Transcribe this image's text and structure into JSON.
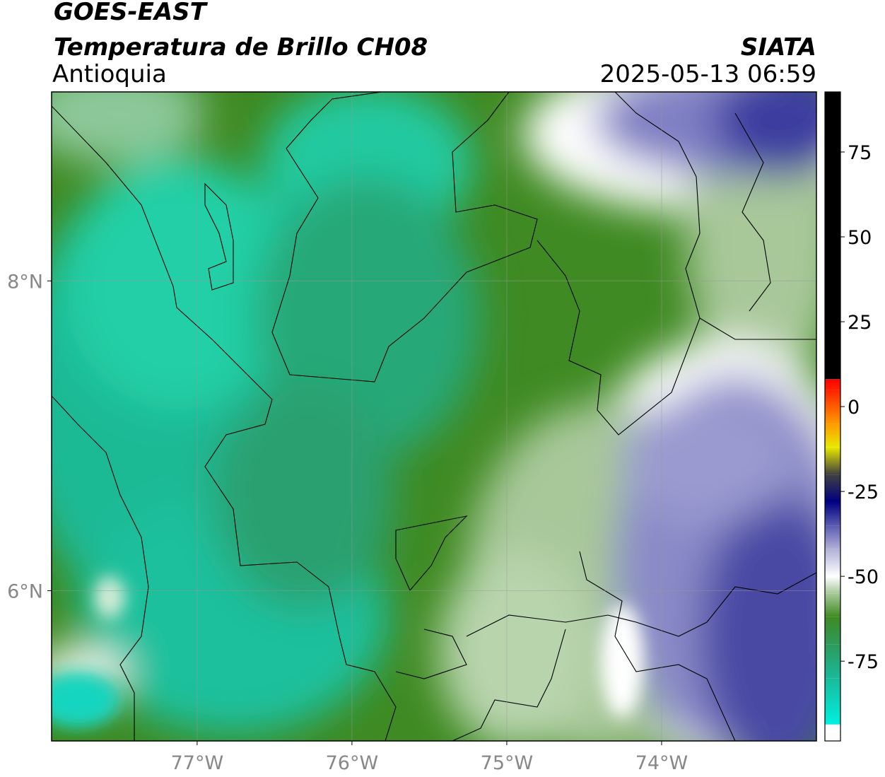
{
  "header": {
    "title": "GOES-EAST",
    "subtitle": "Temperatura de Brillo CH08",
    "region": "Antioquia",
    "source": "SIATA",
    "datetime": "2025-05-13 06:59"
  },
  "map": {
    "xlim": [
      -77.94,
      -73.0
    ],
    "ylim": [
      5.03,
      9.22
    ],
    "xticks": [
      {
        "value": -77,
        "label": "77°W"
      },
      {
        "value": -76,
        "label": "76°W"
      },
      {
        "value": -75,
        "label": "75°W"
      },
      {
        "value": -74,
        "label": "74°W"
      }
    ],
    "yticks": [
      {
        "value": 8,
        "label": "8°N"
      },
      {
        "value": 6,
        "label": "6°N"
      }
    ],
    "grid": true
  },
  "colorbar": {
    "lim": [
      -98.5,
      92.7
    ],
    "ticks": [
      75,
      50,
      25,
      0,
      -25,
      -50,
      -75
    ],
    "stops": [
      {
        "value": -98.5,
        "color": "#ffffff"
      },
      {
        "value": -93.7,
        "color": "#ffffff"
      },
      {
        "value": -93.6,
        "color": "#00f0e0"
      },
      {
        "value": -80,
        "color": "#1ab99a"
      },
      {
        "value": -70,
        "color": "#2e9a5a"
      },
      {
        "value": -62,
        "color": "#3f8a22"
      },
      {
        "value": -55,
        "color": "#a8c89a"
      },
      {
        "value": -50,
        "color": "#ffffff"
      },
      {
        "value": -42,
        "color": "#b0b0d8"
      },
      {
        "value": -35,
        "color": "#5a5ab0"
      },
      {
        "value": -28,
        "color": "#000080"
      },
      {
        "value": -20,
        "color": "#404040"
      },
      {
        "value": -12,
        "color": "#e8e800"
      },
      {
        "value": -5,
        "color": "#ff9900"
      },
      {
        "value": 5,
        "color": "#ff2000"
      },
      {
        "value": 8,
        "color": "#ff0000"
      },
      {
        "value": 8.1,
        "color": "#000000"
      },
      {
        "value": 92.7,
        "color": "#000000"
      }
    ]
  }
}
